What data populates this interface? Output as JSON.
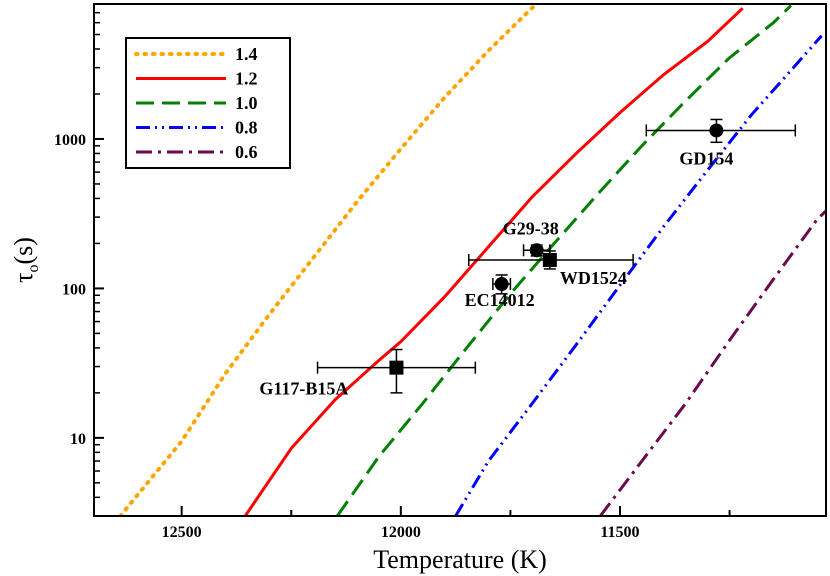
{
  "chart_data": {
    "type": "line",
    "xlabel": "Temperature (K)",
    "ylabel_main": "τ",
    "ylabel_sub": "o",
    "ylabel_tail": "(s)",
    "x_range": [
      12700,
      11030
    ],
    "x_reversed": true,
    "y_range": [
      3,
      8000
    ],
    "y_scale": "log",
    "x_ticks": [
      {
        "value": 12500,
        "label": "12500"
      },
      {
        "value": 12000,
        "label": "12000"
      },
      {
        "value": 11500,
        "label": "11500"
      }
    ],
    "y_ticks": [
      {
        "value": 10,
        "label": "10"
      },
      {
        "value": 100,
        "label": "100"
      },
      {
        "value": 1000,
        "label": "1000"
      }
    ],
    "legend_position": "top-left",
    "series": [
      {
        "name": "1.4",
        "color": "#ffa500",
        "style": "dotted",
        "points": [
          [
            12640,
            3
          ],
          [
            12500,
            9.5
          ],
          [
            12400,
            27
          ],
          [
            12300,
            67
          ],
          [
            12200,
            160
          ],
          [
            12100,
            380
          ],
          [
            12000,
            860
          ],
          [
            11900,
            1900
          ],
          [
            11800,
            3900
          ],
          [
            11695,
            7800
          ]
        ]
      },
      {
        "name": "1.2",
        "color": "#ff0000",
        "style": "solid",
        "points": [
          [
            12355,
            3
          ],
          [
            12250,
            8.5
          ],
          [
            12150,
            18
          ],
          [
            12050,
            33
          ],
          [
            12000,
            44
          ],
          [
            11900,
            88
          ],
          [
            11800,
            190
          ],
          [
            11700,
            410
          ],
          [
            11600,
            800
          ],
          [
            11500,
            1500
          ],
          [
            11400,
            2700
          ],
          [
            11300,
            4500
          ],
          [
            11220,
            7500
          ]
        ]
      },
      {
        "name": "1.0",
        "color": "#008000",
        "style": "dashed",
        "points": [
          [
            12145,
            3
          ],
          [
            12050,
            7.5
          ],
          [
            11950,
            17
          ],
          [
            11850,
            40
          ],
          [
            11750,
            92
          ],
          [
            11650,
            200
          ],
          [
            11550,
            430
          ],
          [
            11450,
            900
          ],
          [
            11350,
            1800
          ],
          [
            11250,
            3500
          ],
          [
            11150,
            6000
          ],
          [
            11110,
            7800
          ]
        ]
      },
      {
        "name": "0.8",
        "color": "#0000ff",
        "style": "dash-dot-dot",
        "points": [
          [
            11875,
            3
          ],
          [
            11800,
            7
          ],
          [
            11700,
            17
          ],
          [
            11600,
            42
          ],
          [
            11500,
            105
          ],
          [
            11400,
            260
          ],
          [
            11300,
            620
          ],
          [
            11200,
            1450
          ],
          [
            11100,
            3100
          ],
          [
            11040,
            4900
          ]
        ]
      },
      {
        "name": "0.6",
        "color": "#6b0a4a",
        "style": "dash-dot",
        "points": [
          [
            11545,
            3
          ],
          [
            11450,
            7
          ],
          [
            11350,
            17
          ],
          [
            11250,
            45
          ],
          [
            11150,
            115
          ],
          [
            11050,
            290
          ],
          [
            11030,
            330
          ]
        ]
      }
    ],
    "stars": [
      {
        "name": "GD154",
        "x": 11280,
        "y": 1140,
        "x_err": [
          11440,
          11100
        ],
        "y_err": [
          950,
          1350
        ],
        "marker": "circle"
      },
      {
        "name": "G29-38",
        "x": 11690,
        "y": 180,
        "x_err": [
          11720,
          11660
        ],
        "y_err": [
          165,
          195
        ],
        "marker": "circle"
      },
      {
        "name": "WD1524",
        "x": 11660,
        "y": 155,
        "x_err": [
          11845,
          11470
        ],
        "y_err": [
          135,
          178
        ],
        "marker": "square"
      },
      {
        "name": "EC14012",
        "x": 11770,
        "y": 107,
        "x_err": [
          11790,
          11750
        ],
        "y_err": [
          92,
          123
        ],
        "marker": "circle"
      },
      {
        "name": "G117-B15A",
        "x": 12010,
        "y": 29.5,
        "x_err": [
          12190,
          11830
        ],
        "y_err": [
          20,
          39
        ],
        "marker": "square"
      }
    ]
  }
}
